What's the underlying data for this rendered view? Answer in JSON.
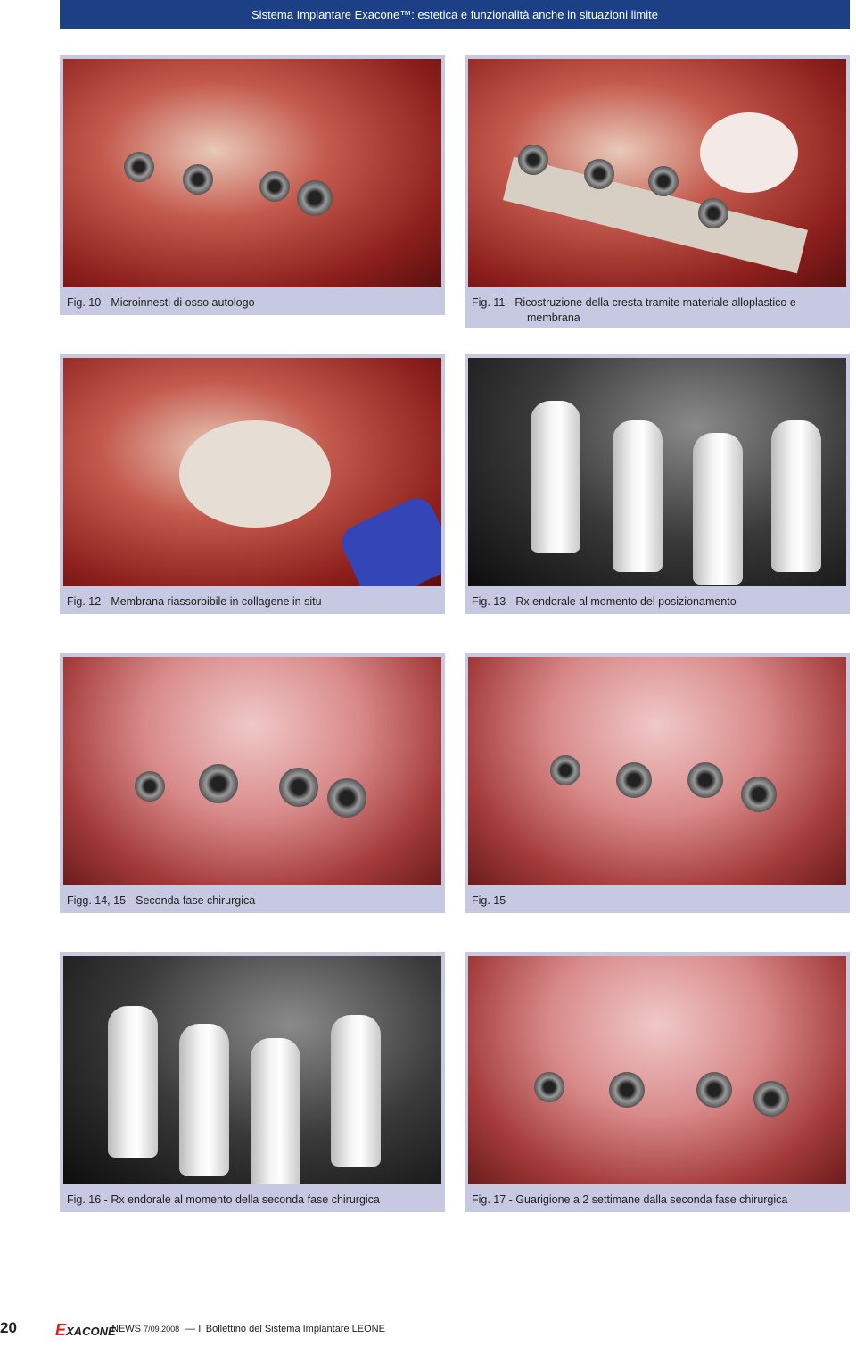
{
  "header": {
    "title": "Sistema Implantare Exacone™: estetica e funzionalità anche in situazioni limite"
  },
  "figures": [
    {
      "caption": "Fig. 10 - Microinnesti di osso autologo"
    },
    {
      "caption": "Fig. 11 - Ricostruzione della cresta tramite materiale alloplastico e membrana"
    },
    {
      "caption": "Fig. 12 - Membrana riassorbibile in collagene in situ"
    },
    {
      "caption": "Fig. 13 - Rx endorale al momento del posizionamento"
    },
    {
      "caption": "Figg. 14, 15 - Seconda fase chirurgica"
    },
    {
      "caption": "Fig. 15"
    },
    {
      "caption": "Fig. 16 - Rx endorale al momento della seconda fase chirurgica"
    },
    {
      "caption": "Fig. 17 - Guarigione a 2 settimane dalla seconda fase chirurgica"
    }
  ],
  "footer": {
    "page_number": "20",
    "logo": "EXACONE",
    "news": "NEWS",
    "issue": "7/09.2008",
    "publication": "— Il Bollettino del Sistema Implantare LEONE"
  }
}
